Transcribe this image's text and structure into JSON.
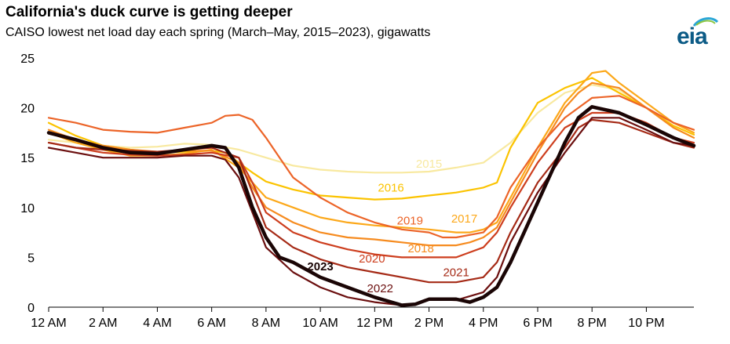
{
  "title": "California's duck curve is getting deeper",
  "subtitle": "CAISO lowest net load day each spring (March–May, 2015–2023), gigawatts",
  "logo_text": "eia",
  "colors": {
    "2015": "#f8e9a0",
    "2016": "#fbc300",
    "2017": "#fca81a",
    "2018": "#f68b1f",
    "2019": "#ec6428",
    "2020": "#cd3e1e",
    "2021": "#a52a16",
    "2022": "#6b0f0f",
    "2023": "#1a0505"
  },
  "chart_data": {
    "type": "line",
    "title": "California's duck curve is getting deeper",
    "subtitle": "CAISO lowest net load day each spring (March–May, 2015–2023), gigawatts",
    "xlabel": "",
    "ylabel": "",
    "x_unit": "hour of day",
    "xlim": [
      0,
      23.75
    ],
    "ylim": [
      0,
      25
    ],
    "yticks": [
      0,
      5,
      10,
      15,
      20,
      25
    ],
    "xticks": [
      {
        "hour": 0,
        "label": "12 AM"
      },
      {
        "hour": 2,
        "label": "2 AM"
      },
      {
        "hour": 4,
        "label": "4 AM"
      },
      {
        "hour": 6,
        "label": "6 AM"
      },
      {
        "hour": 8,
        "label": "8 AM"
      },
      {
        "hour": 10,
        "label": "10 AM"
      },
      {
        "hour": 12,
        "label": "12 PM"
      },
      {
        "hour": 14,
        "label": "2 PM"
      },
      {
        "hour": 16,
        "label": "4 PM"
      },
      {
        "hour": 18,
        "label": "6 PM"
      },
      {
        "hour": 20,
        "label": "8 PM"
      },
      {
        "hour": 22,
        "label": "10 PM"
      }
    ],
    "grid": false,
    "legend": "inline labels",
    "series": [
      {
        "name": "2015",
        "label_pos": [
          14.0,
          14.0
        ],
        "points": [
          [
            0,
            16.8
          ],
          [
            1,
            16.5
          ],
          [
            2,
            16.2
          ],
          [
            3,
            16.0
          ],
          [
            4,
            16.1
          ],
          [
            5,
            16.4
          ],
          [
            6,
            16.3
          ],
          [
            7,
            15.8
          ],
          [
            8,
            15.0
          ],
          [
            9,
            14.2
          ],
          [
            10,
            13.8
          ],
          [
            11,
            13.6
          ],
          [
            12,
            13.5
          ],
          [
            13,
            13.5
          ],
          [
            14,
            13.6
          ],
          [
            15,
            14.0
          ],
          [
            16,
            14.5
          ],
          [
            17,
            16.5
          ],
          [
            18,
            19.5
          ],
          [
            19,
            21.5
          ],
          [
            20,
            22.3
          ],
          [
            21,
            21.8
          ],
          [
            22,
            20.0
          ],
          [
            23,
            18.0
          ],
          [
            23.75,
            17.0
          ]
        ]
      },
      {
        "name": "2016",
        "label_pos": [
          12.6,
          11.6
        ],
        "points": [
          [
            0,
            18.5
          ],
          [
            1,
            17.2
          ],
          [
            2,
            16.2
          ],
          [
            3,
            15.8
          ],
          [
            4,
            15.5
          ],
          [
            5,
            15.6
          ],
          [
            6,
            15.7
          ],
          [
            6.5,
            15.5
          ],
          [
            7,
            14.5
          ],
          [
            7.5,
            13.5
          ],
          [
            8,
            12.6
          ],
          [
            9,
            11.8
          ],
          [
            10,
            11.2
          ],
          [
            11,
            11.0
          ],
          [
            12,
            10.8
          ],
          [
            13,
            10.9
          ],
          [
            14,
            11.2
          ],
          [
            15,
            11.5
          ],
          [
            16,
            12.0
          ],
          [
            16.5,
            12.5
          ],
          [
            17,
            16.0
          ],
          [
            18,
            20.5
          ],
          [
            19,
            22.0
          ],
          [
            20,
            23.0
          ],
          [
            21,
            21.5
          ],
          [
            22,
            20.0
          ],
          [
            23,
            18.2
          ],
          [
            23.75,
            17.3
          ]
        ]
      },
      {
        "name": "2017",
        "label_pos": [
          15.3,
          8.5
        ],
        "points": [
          [
            0,
            17.5
          ],
          [
            1,
            16.5
          ],
          [
            2,
            15.8
          ],
          [
            3,
            15.2
          ],
          [
            4,
            15.2
          ],
          [
            5,
            15.4
          ],
          [
            6,
            15.8
          ],
          [
            7,
            14.0
          ],
          [
            7.5,
            12.5
          ],
          [
            8,
            11.0
          ],
          [
            9,
            10.0
          ],
          [
            10,
            9.0
          ],
          [
            11,
            8.5
          ],
          [
            12,
            8.2
          ],
          [
            13,
            8.0
          ],
          [
            14,
            7.8
          ],
          [
            15,
            7.5
          ],
          [
            15.5,
            7.5
          ],
          [
            16,
            7.8
          ],
          [
            16.5,
            8.5
          ],
          [
            17,
            11.0
          ],
          [
            18,
            16.0
          ],
          [
            19,
            20.5
          ],
          [
            19.5,
            22.0
          ],
          [
            20,
            23.5
          ],
          [
            20.5,
            23.7
          ],
          [
            21,
            22.5
          ],
          [
            22,
            20.5
          ],
          [
            23,
            18.5
          ],
          [
            23.75,
            17.5
          ]
        ]
      },
      {
        "name": "2018",
        "label_pos": [
          13.7,
          5.5
        ],
        "points": [
          [
            0,
            17.8
          ],
          [
            1,
            16.8
          ],
          [
            2,
            16.2
          ],
          [
            3,
            15.8
          ],
          [
            4,
            15.6
          ],
          [
            5,
            15.7
          ],
          [
            6,
            15.7
          ],
          [
            7,
            14.5
          ],
          [
            7.5,
            12.0
          ],
          [
            8,
            10.0
          ],
          [
            9,
            8.5
          ],
          [
            10,
            7.5
          ],
          [
            11,
            7.0
          ],
          [
            12,
            6.8
          ],
          [
            13,
            6.5
          ],
          [
            14,
            6.2
          ],
          [
            15,
            6.2
          ],
          [
            15.5,
            6.5
          ],
          [
            16,
            7.0
          ],
          [
            16.5,
            8.0
          ],
          [
            17,
            10.5
          ],
          [
            18,
            15.5
          ],
          [
            19,
            20.0
          ],
          [
            19.5,
            21.5
          ],
          [
            20,
            22.5
          ],
          [
            21,
            22.0
          ],
          [
            22,
            20.0
          ],
          [
            23,
            18.0
          ],
          [
            23.75,
            17.0
          ]
        ]
      },
      {
        "name": "2019",
        "label_pos": [
          13.3,
          8.3
        ],
        "points": [
          [
            0,
            19.0
          ],
          [
            1,
            18.5
          ],
          [
            2,
            17.8
          ],
          [
            3,
            17.6
          ],
          [
            4,
            17.5
          ],
          [
            5,
            18.0
          ],
          [
            6,
            18.5
          ],
          [
            6.5,
            19.2
          ],
          [
            7,
            19.3
          ],
          [
            7.5,
            18.8
          ],
          [
            8,
            17.0
          ],
          [
            8.5,
            15.0
          ],
          [
            9,
            13.0
          ],
          [
            10,
            11.0
          ],
          [
            11,
            9.5
          ],
          [
            12,
            8.5
          ],
          [
            13,
            7.8
          ],
          [
            14,
            7.5
          ],
          [
            14.5,
            7.0
          ],
          [
            15,
            7.0
          ],
          [
            16,
            7.5
          ],
          [
            16.5,
            9.0
          ],
          [
            17,
            12.0
          ],
          [
            18,
            16.0
          ],
          [
            19,
            19.0
          ],
          [
            20,
            21.0
          ],
          [
            21,
            21.2
          ],
          [
            22,
            20.0
          ],
          [
            23,
            18.5
          ],
          [
            23.75,
            17.8
          ]
        ]
      },
      {
        "name": "2020",
        "label_pos": [
          11.9,
          4.5
        ],
        "points": [
          [
            0,
            16.5
          ],
          [
            1,
            16.0
          ],
          [
            2,
            15.5
          ],
          [
            3,
            15.3
          ],
          [
            4,
            15.2
          ],
          [
            5,
            15.3
          ],
          [
            6,
            15.5
          ],
          [
            7,
            15.0
          ],
          [
            7.5,
            12.5
          ],
          [
            8,
            9.5
          ],
          [
            9,
            7.5
          ],
          [
            10,
            6.5
          ],
          [
            11,
            5.8
          ],
          [
            12,
            5.3
          ],
          [
            13,
            5.0
          ],
          [
            14,
            5.0
          ],
          [
            15,
            5.0
          ],
          [
            15.5,
            5.5
          ],
          [
            16,
            6.0
          ],
          [
            16.5,
            7.5
          ],
          [
            17,
            10.0
          ],
          [
            18,
            14.5
          ],
          [
            19,
            18.0
          ],
          [
            20,
            19.5
          ],
          [
            21,
            19.5
          ],
          [
            22,
            18.5
          ],
          [
            23,
            17.0
          ],
          [
            23.75,
            16.5
          ]
        ]
      },
      {
        "name": "2021",
        "label_pos": [
          15.0,
          3.1
        ],
        "points": [
          [
            0,
            16.5
          ],
          [
            1,
            16.0
          ],
          [
            2,
            15.8
          ],
          [
            3,
            15.7
          ],
          [
            4,
            15.6
          ],
          [
            5,
            15.8
          ],
          [
            6,
            16.0
          ],
          [
            7,
            15.0
          ],
          [
            7.5,
            11.5
          ],
          [
            8,
            8.0
          ],
          [
            9,
            6.0
          ],
          [
            10,
            4.8
          ],
          [
            11,
            4.0
          ],
          [
            12,
            3.5
          ],
          [
            13,
            3.0
          ],
          [
            14,
            2.5
          ],
          [
            15,
            2.5
          ],
          [
            16,
            3.0
          ],
          [
            16.5,
            4.5
          ],
          [
            17,
            7.5
          ],
          [
            18,
            12.5
          ],
          [
            19,
            16.0
          ],
          [
            19.5,
            18.0
          ],
          [
            20,
            18.8
          ],
          [
            21,
            18.5
          ],
          [
            22,
            17.5
          ],
          [
            23,
            16.5
          ],
          [
            23.75,
            16.0
          ]
        ]
      },
      {
        "name": "2022",
        "label_pos": [
          12.2,
          1.5
        ],
        "points": [
          [
            0,
            16.0
          ],
          [
            1,
            15.5
          ],
          [
            2,
            15.0
          ],
          [
            3,
            15.0
          ],
          [
            4,
            15.0
          ],
          [
            5,
            15.2
          ],
          [
            6,
            15.2
          ],
          [
            6.5,
            14.8
          ],
          [
            7,
            13.0
          ],
          [
            7.5,
            9.5
          ],
          [
            8,
            6.0
          ],
          [
            9,
            3.5
          ],
          [
            10,
            2.0
          ],
          [
            11,
            1.0
          ],
          [
            12,
            0.5
          ],
          [
            13,
            0.2
          ],
          [
            13.5,
            0.3
          ],
          [
            14,
            0.8
          ],
          [
            15,
            0.7
          ],
          [
            16,
            1.5
          ],
          [
            16.5,
            3.0
          ],
          [
            17,
            6.5
          ],
          [
            18,
            11.5
          ],
          [
            19,
            15.5
          ],
          [
            20,
            19.0
          ],
          [
            21,
            19.0
          ],
          [
            22,
            17.8
          ],
          [
            23,
            16.5
          ],
          [
            23.75,
            16.2
          ]
        ]
      },
      {
        "name": "2023",
        "label_pos": [
          10.0,
          3.7
        ],
        "bold": true,
        "points": [
          [
            0,
            17.5
          ],
          [
            1,
            16.8
          ],
          [
            2,
            16.0
          ],
          [
            3,
            15.5
          ],
          [
            4,
            15.4
          ],
          [
            5,
            15.8
          ],
          [
            6,
            16.2
          ],
          [
            6.5,
            16.0
          ],
          [
            7,
            14.0
          ],
          [
            7.5,
            10.0
          ],
          [
            8,
            7.0
          ],
          [
            8.5,
            5.0
          ],
          [
            9,
            4.5
          ],
          [
            10,
            3.0
          ],
          [
            11,
            2.0
          ],
          [
            12,
            1.0
          ],
          [
            12.5,
            0.6
          ],
          [
            13,
            0.2
          ],
          [
            13.5,
            0.3
          ],
          [
            14,
            0.8
          ],
          [
            15,
            0.8
          ],
          [
            15.5,
            0.5
          ],
          [
            16,
            1.0
          ],
          [
            16.5,
            2.0
          ],
          [
            17,
            4.5
          ],
          [
            18,
            10.5
          ],
          [
            19,
            16.5
          ],
          [
            19.5,
            19.0
          ],
          [
            20,
            20.1
          ],
          [
            21,
            19.5
          ],
          [
            22,
            18.3
          ],
          [
            23,
            17.0
          ],
          [
            23.75,
            16.2
          ]
        ]
      }
    ]
  }
}
